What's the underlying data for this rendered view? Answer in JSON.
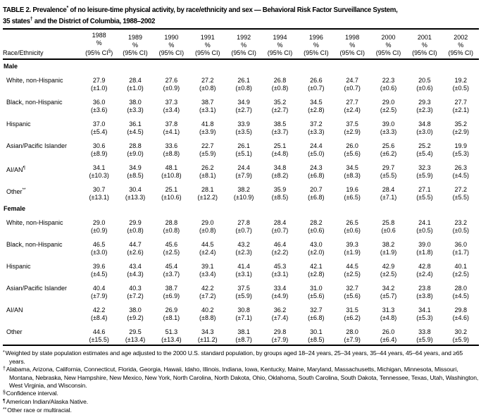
{
  "colors": {
    "text": "#000000",
    "background": "#ffffff"
  },
  "title": {
    "line1_part1": "TABLE 2. Prevalence",
    "line1_sup": "*",
    "line1_part2": " of no leisure-time physical activity, by race/ethnicity and sex — Behavioral Risk Factor Surveillance System,",
    "line2_part1": "35 states",
    "line2_sup": "†",
    "line2_part2": " and the District of Columbia, 1988–2002"
  },
  "table": {
    "row_header": "Race/Ethnicity",
    "pct_label": "%",
    "ci_label": "(95% CI)",
    "first_ci_pre": "(95% CI",
    "first_ci_sup": "§",
    "first_ci_post": ")",
    "years": [
      "1988",
      "1989",
      "1990",
      "1991",
      "1992",
      "1994",
      "1996",
      "1998",
      "2000",
      "2001",
      "2002"
    ],
    "sections": [
      {
        "label": "Male",
        "rows": [
          {
            "label": "White, non-Hispanic",
            "sup": "",
            "cells": [
              [
                "27.9",
                "(±1.0)"
              ],
              [
                "28.4",
                "(±1.0)"
              ],
              [
                "27.6",
                "(±0.9)"
              ],
              [
                "27.2",
                "(±0.8)"
              ],
              [
                "26.1",
                "(±0.8)"
              ],
              [
                "26.8",
                "(±0.8)"
              ],
              [
                "26.6",
                "(±0.7)"
              ],
              [
                "24.7",
                "(±0.7)"
              ],
              [
                "22.3",
                "(±0.6)"
              ],
              [
                "20.5",
                "(±0.6)"
              ],
              [
                "19.2",
                "(±0.5)"
              ]
            ]
          },
          {
            "label": "Black, non-Hispanic",
            "sup": "",
            "cells": [
              [
                "36.0",
                "(±3.6)"
              ],
              [
                "38.0",
                "(±3.3)"
              ],
              [
                "37.3",
                "(±3.4)"
              ],
              [
                "38.7",
                "(±3.1)"
              ],
              [
                "34.9",
                "(±2.7)"
              ],
              [
                "35.2",
                "(±2.7)"
              ],
              [
                "34.5",
                "(±2.8)"
              ],
              [
                "27.7",
                "(±2.4)"
              ],
              [
                "29.0",
                "(±2.5)"
              ],
              [
                "29.3",
                "(±2.3)"
              ],
              [
                "27.7",
                "(±2.1)"
              ]
            ]
          },
          {
            "label": "Hispanic",
            "sup": "",
            "cells": [
              [
                "37.0",
                "(±5.4)"
              ],
              [
                "36.1",
                "(±4.5)"
              ],
              [
                "37.8",
                "(±4.1)"
              ],
              [
                "41.8",
                "(±3.9)"
              ],
              [
                "33.9",
                "(±3.5)"
              ],
              [
                "38.5",
                "(±3.7)"
              ],
              [
                "37.2",
                "(±3.3)"
              ],
              [
                "37.5",
                "(±2.9)"
              ],
              [
                "39.0",
                "(±3.3)"
              ],
              [
                "34.8",
                "(±3.0)"
              ],
              [
                "35.2",
                "(±2.9)"
              ]
            ]
          },
          {
            "label": "Asian/Pacific Islander",
            "sup": "",
            "cells": [
              [
                "30.6",
                "(±8.9)"
              ],
              [
                "28.8",
                "(±9.0)"
              ],
              [
                "33.6",
                "(±8.8)"
              ],
              [
                "22.7",
                "(±5.9)"
              ],
              [
                "26.1",
                "(±5.1)"
              ],
              [
                "25.1",
                "(±4.8)"
              ],
              [
                "24.4",
                "(±5.0)"
              ],
              [
                "26.0",
                "(±5.6)"
              ],
              [
                "25.6",
                "(±6.2)"
              ],
              [
                "25.2",
                "(±5.4)"
              ],
              [
                "19.9",
                "(±5.3)"
              ]
            ]
          },
          {
            "label": "AI/AN",
            "sup": "¶",
            "cells": [
              [
                "34.1",
                "(±10.3)"
              ],
              [
                "34.9",
                "(±8.5)"
              ],
              [
                "48.1",
                "(±10.8)"
              ],
              [
                "26.2",
                "(±8.1)"
              ],
              [
                "24.4",
                "(±7.9)"
              ],
              [
                "34.8",
                "(±8.2)"
              ],
              [
                "24.3",
                "(±6.8)"
              ],
              [
                "34.5",
                "(±8.3)"
              ],
              [
                "29.7",
                "(±5.5)"
              ],
              [
                "32.3",
                "(±5.9)"
              ],
              [
                "26.3",
                "(±4.5)"
              ]
            ]
          },
          {
            "label": "Other",
            "sup": "**",
            "cells": [
              [
                "30.7",
                "(±13.1)"
              ],
              [
                "30.4",
                "(±13.3)"
              ],
              [
                "25.1",
                "(±10.6)"
              ],
              [
                "28.1",
                "(±12.2)"
              ],
              [
                "38.2",
                "(±10.9)"
              ],
              [
                "35.9",
                "(±8.5)"
              ],
              [
                "20.7",
                "(±6.8)"
              ],
              [
                "19.6",
                "(±6.5)"
              ],
              [
                "28.4",
                "(±7.1)"
              ],
              [
                "27.1",
                "(±5.5)"
              ],
              [
                "27.2",
                "(±5.5)"
              ]
            ]
          }
        ]
      },
      {
        "label": "Female",
        "rows": [
          {
            "label": "White, non-Hispanic",
            "sup": "",
            "cells": [
              [
                "29.0",
                "(±0.9)"
              ],
              [
                "29.9",
                "(±0.8)"
              ],
              [
                "28.8",
                "(±0.8)"
              ],
              [
                "29.0",
                "(±0.8)"
              ],
              [
                "27.8",
                "(±0.7)"
              ],
              [
                "28.4",
                "(±0.7)"
              ],
              [
                "28.2",
                "(±0.6)"
              ],
              [
                "26.5",
                "(±0.6)"
              ],
              [
                "25.8",
                "(±0.6"
              ],
              [
                "24.1",
                "(±0.5)"
              ],
              [
                "23.2",
                "(±0.5)"
              ]
            ]
          },
          {
            "label": "Black, non-Hispanic",
            "sup": "",
            "cells": [
              [
                "46.5",
                "(±3.0)"
              ],
              [
                "44.7",
                "(±2.6)"
              ],
              [
                "45.6",
                "(±2.5)"
              ],
              [
                "44.5",
                "(±2.4)"
              ],
              [
                "43.2",
                "(±2.3)"
              ],
              [
                "46.4",
                "(±2.2)"
              ],
              [
                "43.0",
                "(±2.0)"
              ],
              [
                "39.3",
                "(±1.9)"
              ],
              [
                "38.2",
                "(±1.9)"
              ],
              [
                "39.0",
                "(±1.8)"
              ],
              [
                "36.0",
                "(±1.7)"
              ]
            ]
          },
          {
            "label": "Hispanic",
            "sup": "",
            "cells": [
              [
                "39.6",
                "(±4.5)"
              ],
              [
                "43.4",
                "(±4.3)"
              ],
              [
                "45.4",
                "(±3.7)"
              ],
              [
                "39.1",
                "(±3.4)"
              ],
              [
                "41.4",
                "(±3.1)"
              ],
              [
                "45.3",
                "(±3.1)"
              ],
              [
                "42.1",
                "(±2.8)"
              ],
              [
                "44.5",
                "(±2.5)"
              ],
              [
                "42.9",
                "(±2.5)"
              ],
              [
                "42.8",
                "(±2.4)"
              ],
              [
                "40.1",
                "(±2.5)"
              ]
            ]
          },
          {
            "label": "Asian/Pacific Islander",
            "sup": "",
            "cells": [
              [
                "40.4",
                "(±7.9)"
              ],
              [
                "40.3",
                "(±7.2)"
              ],
              [
                "38.7",
                "(±6.9)"
              ],
              [
                "42.2",
                "(±7.2)"
              ],
              [
                "37.5",
                "(±5.9)"
              ],
              [
                "33.4",
                "(±4.9)"
              ],
              [
                "31.0",
                "(±5.6)"
              ],
              [
                "32.7",
                "(±5.6)"
              ],
              [
                "34.2",
                "(±5.7)"
              ],
              [
                "23.8",
                "(±3.8)"
              ],
              [
                "28.0",
                "(±4.5)"
              ]
            ]
          },
          {
            "label": "AI/AN",
            "sup": "",
            "cells": [
              [
                "42.2",
                "(±8.4)"
              ],
              [
                "38.0",
                "(±9.2)"
              ],
              [
                "26.9",
                "(±8.1)"
              ],
              [
                "40.2",
                "(±8.8)"
              ],
              [
                "30.8",
                "(±7.1)"
              ],
              [
                "36.2",
                "(±7.4)"
              ],
              [
                "32.7",
                "(±6.8)"
              ],
              [
                "31.5",
                "(±6.2)"
              ],
              [
                "31.3",
                "(±4.8)"
              ],
              [
                "34.1",
                "(±5.3)"
              ],
              [
                "29.8",
                "(±4.6)"
              ]
            ]
          },
          {
            "label": "Other",
            "sup": "",
            "cells": [
              [
                "44.6",
                "(±15.5)"
              ],
              [
                "29.5",
                "(±13.4)"
              ],
              [
                "51.3",
                "(±13.4)"
              ],
              [
                "34.3",
                "(±11.2)"
              ],
              [
                "38.1",
                "(±8.7)"
              ],
              [
                "29.8",
                "(±7.9)"
              ],
              [
                "30.1",
                "(±8.5)"
              ],
              [
                "28.0",
                "(±7.9)"
              ],
              [
                "26.0",
                "(±6.4)"
              ],
              [
                "33.8",
                "(±5.9)"
              ],
              [
                "30.2",
                "(±5.9)"
              ]
            ]
          }
        ]
      }
    ]
  },
  "footnotes": [
    {
      "marker": "*",
      "text": "Weighted by state population estimates and age adjusted to the 2000 U.S. standard population, by groups aged 18–24 years, 25–34 years, 35–44 years, 45–64 years, and ≥65 years."
    },
    {
      "marker": "†",
      "text": "Alabama, Arizona, California, Connecticut, Florida, Georgia, Hawaii, Idaho, Illinois, Indiana, Iowa, Kentucky, Maine, Maryland, Massachusetts, Michigan, Minnesota, Missouri, Montana, Nebraska, New Hampshire, New Mexico, New York, North Carolina, North Dakota, Ohio, Oklahoma, South Carolina, South Dakota, Tennessee, Texas, Utah, Washington, West Virginia, and Wisconsin."
    },
    {
      "marker": "§",
      "text": "Confidence interval."
    },
    {
      "marker": "¶",
      "text": "American Indian/Alaska Native."
    },
    {
      "marker": "**",
      "text": "Other race or multiracial."
    }
  ]
}
